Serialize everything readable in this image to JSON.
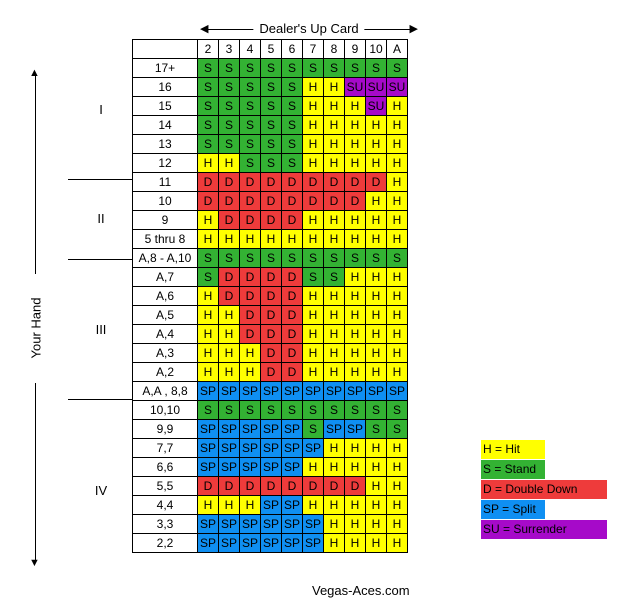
{
  "dealer_label": "Dealer's Up Card",
  "your_hand_label": "Your Hand",
  "dealer_cards": [
    "2",
    "3",
    "4",
    "5",
    "6",
    "7",
    "8",
    "9",
    "10",
    "A"
  ],
  "colors": {
    "H": "#ffff00",
    "S": "#33b233",
    "D": "#ee3b3b",
    "SP": "#0f8ff2",
    "SU": "#a60ac9"
  },
  "groups": [
    "I",
    "II",
    "III",
    "IV"
  ],
  "rows": [
    {
      "hand": "17+",
      "cells": [
        "S",
        "S",
        "S",
        "S",
        "S",
        "S",
        "S",
        "S",
        "S",
        "S"
      ]
    },
    {
      "hand": "16",
      "cells": [
        "S",
        "S",
        "S",
        "S",
        "S",
        "H",
        "H",
        "SU",
        "SU",
        "SU"
      ]
    },
    {
      "hand": "15",
      "cells": [
        "S",
        "S",
        "S",
        "S",
        "S",
        "H",
        "H",
        "H",
        "SU",
        "H"
      ]
    },
    {
      "hand": "14",
      "cells": [
        "S",
        "S",
        "S",
        "S",
        "S",
        "H",
        "H",
        "H",
        "H",
        "H"
      ]
    },
    {
      "hand": "13",
      "cells": [
        "S",
        "S",
        "S",
        "S",
        "S",
        "H",
        "H",
        "H",
        "H",
        "H"
      ]
    },
    {
      "hand": "12",
      "cells": [
        "H",
        "H",
        "S",
        "S",
        "S",
        "H",
        "H",
        "H",
        "H",
        "H"
      ]
    },
    {
      "hand": "11",
      "cells": [
        "D",
        "D",
        "D",
        "D",
        "D",
        "D",
        "D",
        "D",
        "D",
        "H"
      ]
    },
    {
      "hand": "10",
      "cells": [
        "D",
        "D",
        "D",
        "D",
        "D",
        "D",
        "D",
        "D",
        "H",
        "H"
      ]
    },
    {
      "hand": "9",
      "cells": [
        "H",
        "D",
        "D",
        "D",
        "D",
        "H",
        "H",
        "H",
        "H",
        "H"
      ]
    },
    {
      "hand": "5 thru 8",
      "cells": [
        "H",
        "H",
        "H",
        "H",
        "H",
        "H",
        "H",
        "H",
        "H",
        "H"
      ]
    },
    {
      "hand": "A,8 - A,10",
      "cells": [
        "S",
        "S",
        "S",
        "S",
        "S",
        "S",
        "S",
        "S",
        "S",
        "S"
      ]
    },
    {
      "hand": "A,7",
      "cells": [
        "S",
        "D",
        "D",
        "D",
        "D",
        "S",
        "S",
        "H",
        "H",
        "H"
      ]
    },
    {
      "hand": "A,6",
      "cells": [
        "H",
        "D",
        "D",
        "D",
        "D",
        "H",
        "H",
        "H",
        "H",
        "H"
      ]
    },
    {
      "hand": "A,5",
      "cells": [
        "H",
        "H",
        "D",
        "D",
        "D",
        "H",
        "H",
        "H",
        "H",
        "H"
      ]
    },
    {
      "hand": "A,4",
      "cells": [
        "H",
        "H",
        "D",
        "D",
        "D",
        "H",
        "H",
        "H",
        "H",
        "H"
      ]
    },
    {
      "hand": "A,3",
      "cells": [
        "H",
        "H",
        "H",
        "D",
        "D",
        "H",
        "H",
        "H",
        "H",
        "H"
      ]
    },
    {
      "hand": "A,2",
      "cells": [
        "H",
        "H",
        "H",
        "D",
        "D",
        "H",
        "H",
        "H",
        "H",
        "H"
      ]
    },
    {
      "hand": "A,A , 8,8",
      "cells": [
        "SP",
        "SP",
        "SP",
        "SP",
        "SP",
        "SP",
        "SP",
        "SP",
        "SP",
        "SP"
      ]
    },
    {
      "hand": "10,10",
      "cells": [
        "S",
        "S",
        "S",
        "S",
        "S",
        "S",
        "S",
        "S",
        "S",
        "S"
      ]
    },
    {
      "hand": "9,9",
      "cells": [
        "SP",
        "SP",
        "SP",
        "SP",
        "SP",
        "S",
        "SP",
        "SP",
        "S",
        "S"
      ]
    },
    {
      "hand": "7,7",
      "cells": [
        "SP",
        "SP",
        "SP",
        "SP",
        "SP",
        "SP",
        "H",
        "H",
        "H",
        "H"
      ]
    },
    {
      "hand": "6,6",
      "cells": [
        "SP",
        "SP",
        "SP",
        "SP",
        "SP",
        "H",
        "H",
        "H",
        "H",
        "H"
      ]
    },
    {
      "hand": "5,5",
      "cells": [
        "D",
        "D",
        "D",
        "D",
        "D",
        "D",
        "D",
        "D",
        "H",
        "H"
      ]
    },
    {
      "hand": "4,4",
      "cells": [
        "H",
        "H",
        "H",
        "SP",
        "SP",
        "H",
        "H",
        "H",
        "H",
        "H"
      ]
    },
    {
      "hand": "3,3",
      "cells": [
        "SP",
        "SP",
        "SP",
        "SP",
        "SP",
        "SP",
        "H",
        "H",
        "H",
        "H"
      ]
    },
    {
      "hand": "2,2",
      "cells": [
        "SP",
        "SP",
        "SP",
        "SP",
        "SP",
        "SP",
        "H",
        "H",
        "H",
        "H"
      ]
    }
  ],
  "legend": [
    {
      "code": "H",
      "label": "H = Hit"
    },
    {
      "code": "S",
      "label": "S = Stand"
    },
    {
      "code": "D",
      "label": "D = Double Down"
    },
    {
      "code": "SP",
      "label": "SP = Split"
    },
    {
      "code": "SU",
      "label": "SU = Surrender"
    }
  ],
  "footer": "Vegas-Aces.com"
}
